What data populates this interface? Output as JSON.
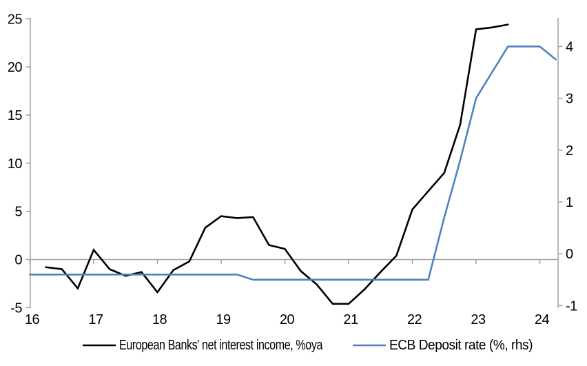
{
  "chart_data": {
    "type": "line",
    "grid": false,
    "legend_position": "bottom",
    "background": "#ffffff",
    "axis_color": "#a6a6a6",
    "text_color": "#000000",
    "x_axis": {
      "tick_labels": [
        "16",
        "17",
        "18",
        "19",
        "20",
        "21",
        "22",
        "23",
        "24"
      ],
      "tick_values": [
        16,
        17,
        18,
        19,
        20,
        21,
        22,
        23,
        24
      ],
      "range": [
        16,
        24.3
      ]
    },
    "y_axis_left": {
      "tick_labels": [
        "25",
        "20",
        "15",
        "10",
        "5",
        "0",
        "-5"
      ],
      "tick_values": [
        25,
        20,
        15,
        10,
        5,
        0,
        -5
      ],
      "range": [
        -5.05,
        25.15
      ]
    },
    "y_axis_right": {
      "tick_labels": [
        "4",
        "3",
        "2",
        "1",
        "0",
        "-1"
      ],
      "tick_values": [
        4,
        3,
        2,
        1,
        0,
        -1
      ],
      "range": [
        -1.06,
        4.56
      ]
    },
    "series": [
      {
        "name": "European Banks' net interest income, %oya",
        "axis": "left",
        "color": "#000000",
        "x": [
          16.25,
          16.5,
          16.75,
          17,
          17.25,
          17.5,
          17.75,
          18,
          18.25,
          18.5,
          18.75,
          19,
          19.25,
          19.5,
          19.75,
          20,
          20.25,
          20.5,
          20.75,
          21,
          21.25,
          21.5,
          21.75,
          22,
          22.25,
          22.5,
          22.75,
          23,
          23.25,
          23.5
        ],
        "y": [
          -0.8,
          -1.0,
          -3.0,
          1.0,
          -1.0,
          -1.7,
          -1.3,
          -3.4,
          -1.1,
          -0.2,
          3.3,
          4.5,
          4.3,
          4.4,
          1.5,
          1.1,
          -1.2,
          -2.6,
          -4.6,
          -4.6,
          -3.1,
          -1.3,
          0.4,
          5.2,
          7.1,
          9.0,
          14.0,
          23.9,
          24.1,
          24.4
        ]
      },
      {
        "name": "ECB Deposit rate (%, rhs)",
        "axis": "right",
        "color": "#4F81BD",
        "x": [
          16,
          16.25,
          16.5,
          16.75,
          17,
          17.25,
          17.5,
          17.75,
          18,
          18.25,
          18.5,
          18.75,
          19,
          19.25,
          19.5,
          19.75,
          20,
          20.25,
          20.5,
          20.75,
          21,
          21.25,
          21.5,
          21.75,
          22,
          22.25,
          22.5,
          22.75,
          23,
          23.25,
          23.5,
          23.75,
          24,
          24.25
        ],
        "y": [
          -0.4,
          -0.4,
          -0.4,
          -0.4,
          -0.4,
          -0.4,
          -0.4,
          -0.4,
          -0.4,
          -0.4,
          -0.4,
          -0.4,
          -0.4,
          -0.4,
          -0.5,
          -0.5,
          -0.5,
          -0.5,
          -0.5,
          -0.5,
          -0.5,
          -0.5,
          -0.5,
          -0.5,
          -0.5,
          -0.5,
          0.7,
          1.8,
          3.0,
          3.5,
          4.0,
          4.0,
          4.0,
          3.75
        ]
      }
    ]
  }
}
